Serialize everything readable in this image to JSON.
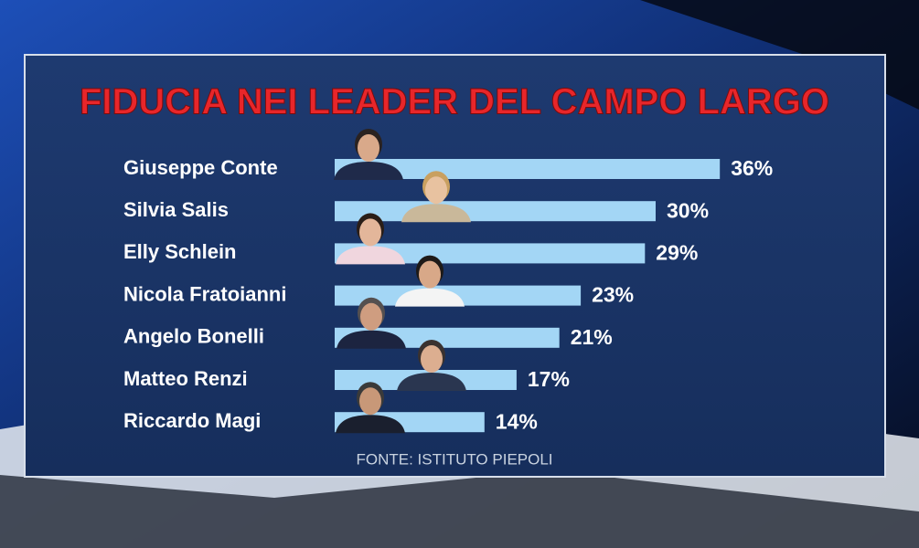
{
  "chart_data": {
    "type": "bar",
    "orientation": "horizontal",
    "title": "FIDUCIA NEI LEADER DEL CAMPO LARGO",
    "categories": [
      "Giuseppe Conte",
      "Silvia Salis",
      "Elly Schlein",
      "Nicola Fratoianni",
      "Angelo Bonelli",
      "Matteo Renzi",
      "Riccardo Magi"
    ],
    "values": [
      36,
      30,
      29,
      23,
      21,
      17,
      14
    ],
    "value_labels": [
      "36%",
      "30%",
      "29%",
      "23%",
      "21%",
      "17%",
      "14%"
    ],
    "color": "#a3d6f5",
    "source": "FONTE: ISTITUTO PIEPOLI"
  }
}
